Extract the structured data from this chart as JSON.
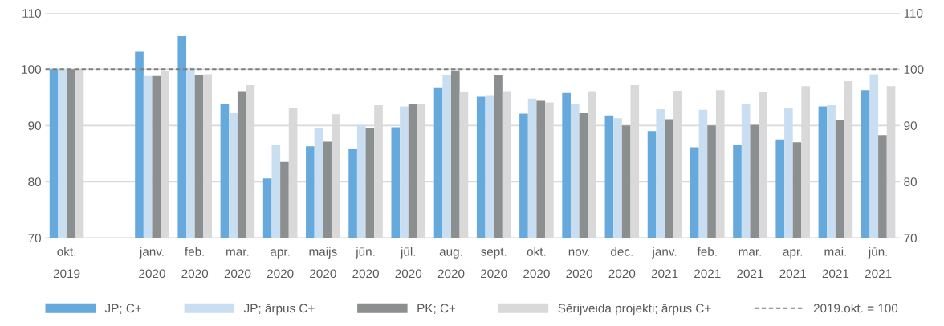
{
  "chart_data": {
    "type": "bar",
    "categories": [
      "okt.\n2019",
      null,
      "janv.\n2020",
      "feb.\n2020",
      "mar.\n2020",
      "apr.\n2020",
      "maijs\n2020",
      "jūn.\n2020",
      "jūl.\n2020",
      "aug.\n2020",
      "sept.\n2020",
      "okt.\n2020",
      "nov.\n2020",
      "dec.\n2020",
      "janv.\n2021",
      "feb.\n2021",
      "mar.\n2021",
      "apr.\n2021",
      "mai.\n2021",
      "jūn.\n2021"
    ],
    "series": [
      {
        "name": "JP; C+",
        "color": "#66a9dc",
        "values": [
          100,
          null,
          103.1,
          105.9,
          93.9,
          80.6,
          86.3,
          85.9,
          89.7,
          96.8,
          95.1,
          92.1,
          95.8,
          91.8,
          89.0,
          86.1,
          86.5,
          87.5,
          93.4,
          96.3
        ]
      },
      {
        "name": "JP; ārpus C+",
        "color": "#c9dff1",
        "values": [
          100,
          null,
          98.8,
          100.2,
          92.2,
          86.6,
          89.5,
          90.1,
          93.4,
          98.9,
          95.4,
          94.8,
          93.8,
          91.3,
          92.9,
          92.8,
          93.8,
          93.2,
          93.6,
          99.1
        ]
      },
      {
        "name": "PK; C+",
        "color": "#8c8f90",
        "values": [
          100,
          null,
          98.8,
          98.9,
          96.1,
          83.5,
          87.1,
          89.6,
          93.8,
          99.8,
          98.9,
          94.4,
          92.2,
          90.0,
          91.1,
          90.0,
          90.1,
          87.0,
          90.9,
          88.3
        ]
      },
      {
        "name": "Sērijveida projekti; ārpus C+",
        "color": "#d9d9d9",
        "values": [
          100,
          null,
          99.6,
          99.1,
          97.2,
          93.1,
          92.0,
          93.6,
          93.8,
          95.9,
          96.1,
          94.1,
          96.1,
          97.2,
          96.2,
          96.3,
          96.0,
          97.0,
          97.9,
          97.0
        ]
      }
    ],
    "ylim": [
      70,
      110
    ],
    "yticks": [
      70,
      80,
      90,
      100,
      110
    ],
    "y2lim": [
      70,
      110
    ],
    "y2ticks": [
      70,
      80,
      90,
      100,
      110
    ],
    "ref_lines": [
      {
        "axis": "y",
        "value": 100,
        "label": "2019.okt. = 100",
        "color": "#7f7f7f",
        "line_style": "dashed"
      }
    ],
    "grid": "y",
    "legend": "bottom"
  }
}
